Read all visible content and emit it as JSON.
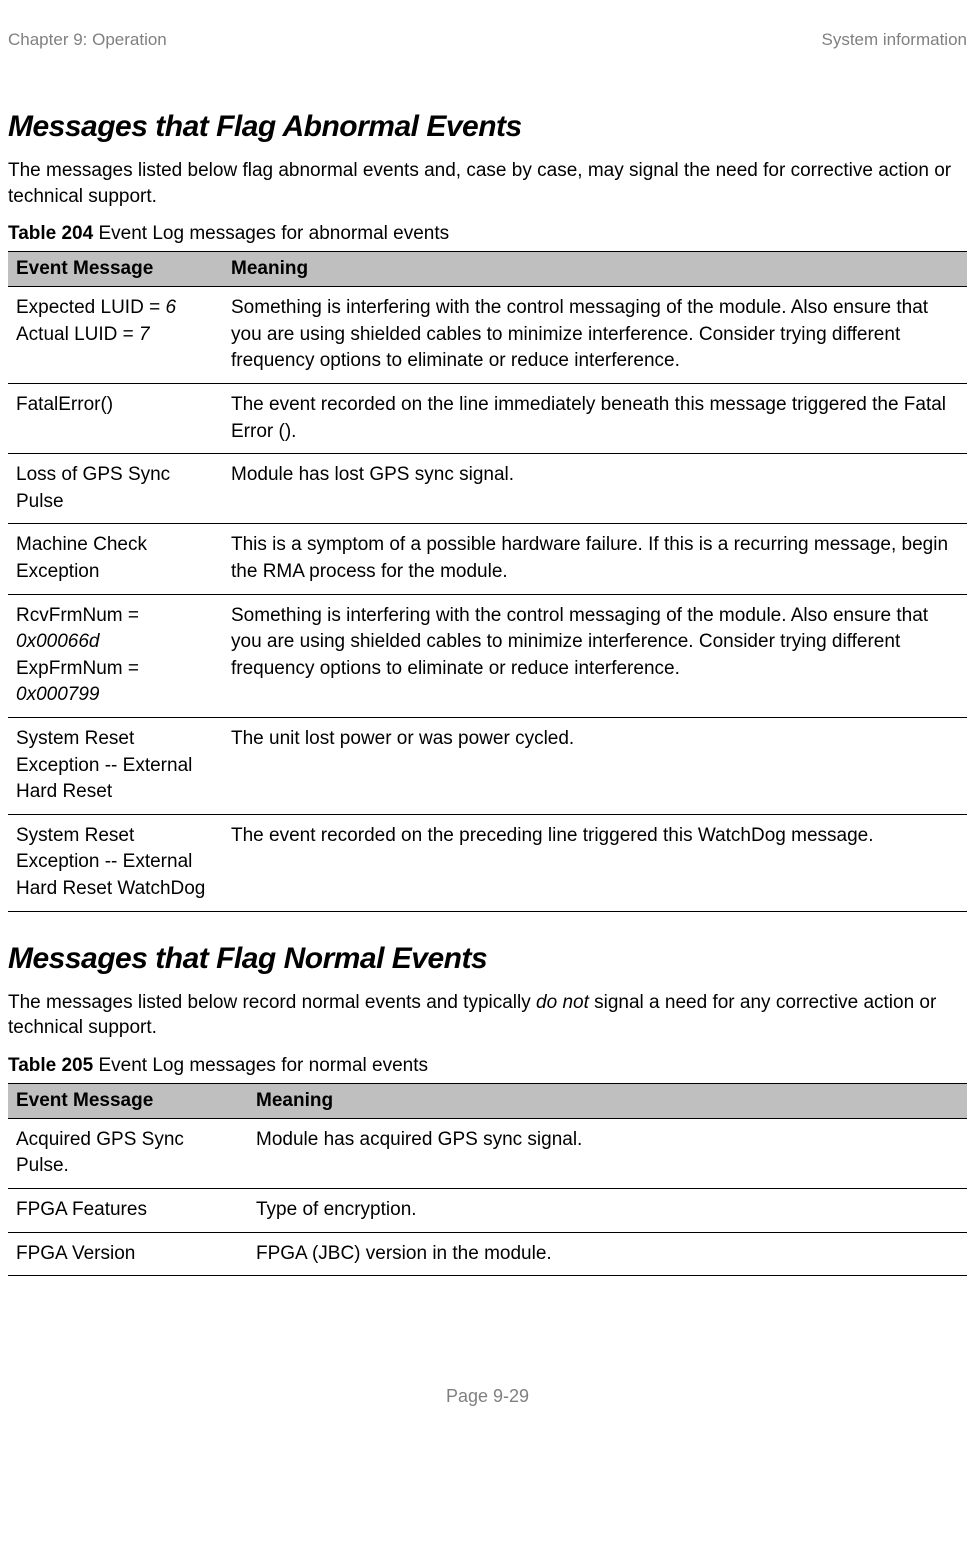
{
  "header": {
    "left": "Chapter 9:  Operation",
    "right": "System information"
  },
  "section1": {
    "title": "Messages that Flag Abnormal Events",
    "intro": "The messages listed below flag abnormal events and, case by case, may signal the need for corrective action or technical support.",
    "caption_bold": "Table 204",
    "caption_rest": " Event Log messages for abnormal events",
    "col1": "Event Message",
    "col2": "Meaning",
    "rows": [
      {
        "msg_line1_pre": "Expected LUID = ",
        "msg_line1_ital": "6",
        "msg_line2_pre": "Actual LUID = ",
        "msg_line2_ital": "7",
        "meaning": "Something is interfering with the control messaging of the module. Also ensure that you are using shielded cables to minimize interference. Consider trying different frequency options to eliminate or reduce interference."
      },
      {
        "msg": "FatalError()",
        "meaning": "The event recorded on the line immediately beneath this message triggered the Fatal Error ()."
      },
      {
        "msg": "Loss of GPS Sync Pulse",
        "meaning": "Module has lost GPS sync signal."
      },
      {
        "msg": "Machine Check Exception",
        "meaning": "This is a symptom of a possible hardware failure. If this is a recurring message, begin the RMA process for the module."
      },
      {
        "msg_line1_pre": "RcvFrmNum = ",
        "msg_line1_ital": "0x00066d",
        "msg_line2_pre": "ExpFrmNum = ",
        "msg_line2_ital": "0x000799",
        "meaning": "Something is interfering with the control messaging of the module. Also ensure that you are using shielded cables to minimize interference. Consider trying different frequency options to eliminate or reduce interference."
      },
      {
        "msg": "System Reset Exception -- External Hard Reset",
        "meaning": "The unit lost power or was power cycled."
      },
      {
        "msg": "System Reset Exception -- External Hard Reset WatchDog",
        "meaning": "The event recorded on the preceding line triggered this WatchDog message."
      }
    ]
  },
  "section2": {
    "title": "Messages that Flag Normal Events",
    "intro_pre": "The messages listed below record normal events and typically ",
    "intro_ital": "do not",
    "intro_post": " signal a need for any corrective action or technical support.",
    "caption_bold": "Table 205",
    "caption_rest": " Event Log messages for normal events",
    "col1": "Event Message",
    "col2": "Meaning",
    "rows": [
      {
        "msg": "Acquired GPS Sync Pulse.",
        "meaning": "Module has acquired GPS sync signal."
      },
      {
        "msg": "FPGA Features",
        "meaning": "Type of encryption."
      },
      {
        "msg": "FPGA Version",
        "meaning": "FPGA (JBC) version in the module."
      }
    ]
  },
  "footer": "Page 9-29"
}
